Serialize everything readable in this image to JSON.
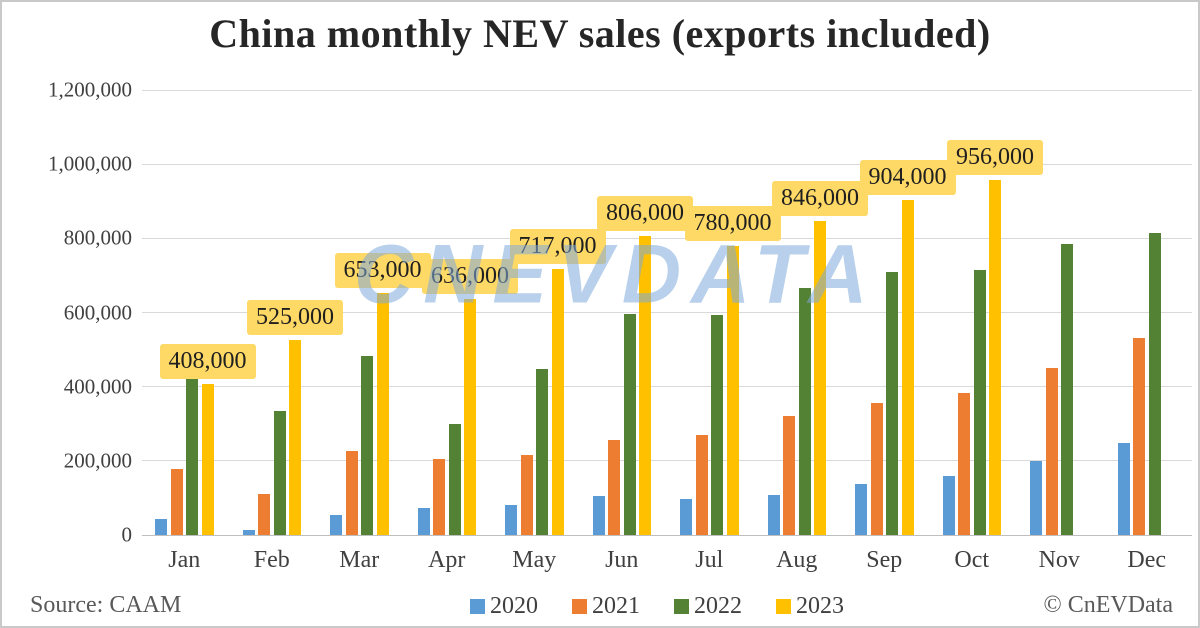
{
  "title": "China monthly NEV sales (exports included)",
  "watermark_text": "CNEVDATA",
  "footer": {
    "source": "Source: CAAM",
    "copyright": "© CnEVData"
  },
  "colors": {
    "gridline": "#D9D9D9",
    "axis_line": "#BFBFBF",
    "title_text": "#262626",
    "tick_text": "#404040",
    "footer_text": "#595959",
    "data_label_bg": "#FFD966",
    "data_label_text": "#1F1F1F",
    "watermark": "rgba(126,169,219,0.55)"
  },
  "chart_data": {
    "type": "bar",
    "title": "China monthly NEV sales (exports included)",
    "xlabel": "",
    "ylabel": "",
    "ylim": [
      0,
      1200000
    ],
    "ytick_step": 200000,
    "ytick_labels": [
      "0",
      "200,000",
      "400,000",
      "600,000",
      "800,000",
      "1,000,000",
      "1,200,000"
    ],
    "grid": true,
    "legend_position": "bottom",
    "categories": [
      "Jan",
      "Feb",
      "Mar",
      "Apr",
      "May",
      "Jun",
      "Jul",
      "Aug",
      "Sep",
      "Oct",
      "Nov",
      "Dec"
    ],
    "series": [
      {
        "name": "2020",
        "color": "#5B9BD5",
        "values": [
          44000,
          13000,
          53000,
          72000,
          82000,
          104000,
          98000,
          109000,
          138000,
          160000,
          200000,
          248000
        ],
        "data_labels": false
      },
      {
        "name": "2021",
        "color": "#ED7D31",
        "values": [
          179000,
          110000,
          226000,
          206000,
          217000,
          256000,
          271000,
          321000,
          357000,
          383000,
          450000,
          531000
        ],
        "data_labels": false
      },
      {
        "name": "2022",
        "color": "#548235",
        "values": [
          431000,
          334000,
          484000,
          299000,
          447000,
          596000,
          593000,
          666000,
          708000,
          714000,
          786000,
          814000
        ],
        "data_labels": false
      },
      {
        "name": "2023",
        "color": "#FFC000",
        "values": [
          408000,
          525000,
          653000,
          636000,
          717000,
          806000,
          780000,
          846000,
          904000,
          956000,
          null,
          null
        ],
        "data_labels": true,
        "label_texts": [
          "408,000",
          "525,000",
          "653,000",
          "636,000",
          "717,000",
          "806,000",
          "780,000",
          "846,000",
          "904,000",
          "956,000",
          null,
          null
        ]
      }
    ]
  }
}
